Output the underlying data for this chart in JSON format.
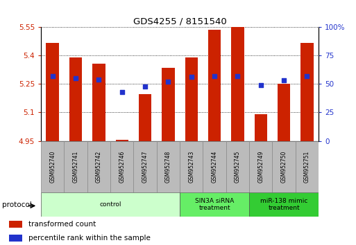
{
  "title": "GDS4255 / 8151540",
  "samples": [
    "GSM952740",
    "GSM952741",
    "GSM952742",
    "GSM952746",
    "GSM952747",
    "GSM952748",
    "GSM952743",
    "GSM952744",
    "GSM952745",
    "GSM952749",
    "GSM952750",
    "GSM952751"
  ],
  "transformed_count": [
    5.465,
    5.39,
    5.355,
    4.955,
    5.195,
    5.335,
    5.39,
    5.535,
    5.55,
    5.09,
    5.25,
    5.465
  ],
  "percentile_rank": [
    57,
    55,
    54,
    43,
    48,
    52,
    56,
    57,
    57,
    49,
    53,
    57
  ],
  "ylim_left": [
    4.95,
    5.55
  ],
  "ylim_right": [
    0,
    100
  ],
  "yticks_left": [
    4.95,
    5.1,
    5.25,
    5.4,
    5.55
  ],
  "yticks_right": [
    0,
    25,
    50,
    75,
    100
  ],
  "bar_color": "#cc2200",
  "dot_color": "#2233cc",
  "bg_color": "#ffffff",
  "groups": [
    {
      "label": "control",
      "start": 0,
      "end": 6,
      "color": "#ccffcc"
    },
    {
      "label": "SIN3A siRNA\ntreatment",
      "start": 6,
      "end": 9,
      "color": "#66ee66"
    },
    {
      "label": "miR-138 mimic\ntreatment",
      "start": 9,
      "end": 12,
      "color": "#33cc33"
    }
  ],
  "legend_items": [
    {
      "label": "transformed count",
      "color": "#cc2200"
    },
    {
      "label": "percentile rank within the sample",
      "color": "#2233cc"
    }
  ],
  "bar_width": 0.55,
  "protocol_label": "protocol",
  "sample_box_color": "#bbbbbb"
}
